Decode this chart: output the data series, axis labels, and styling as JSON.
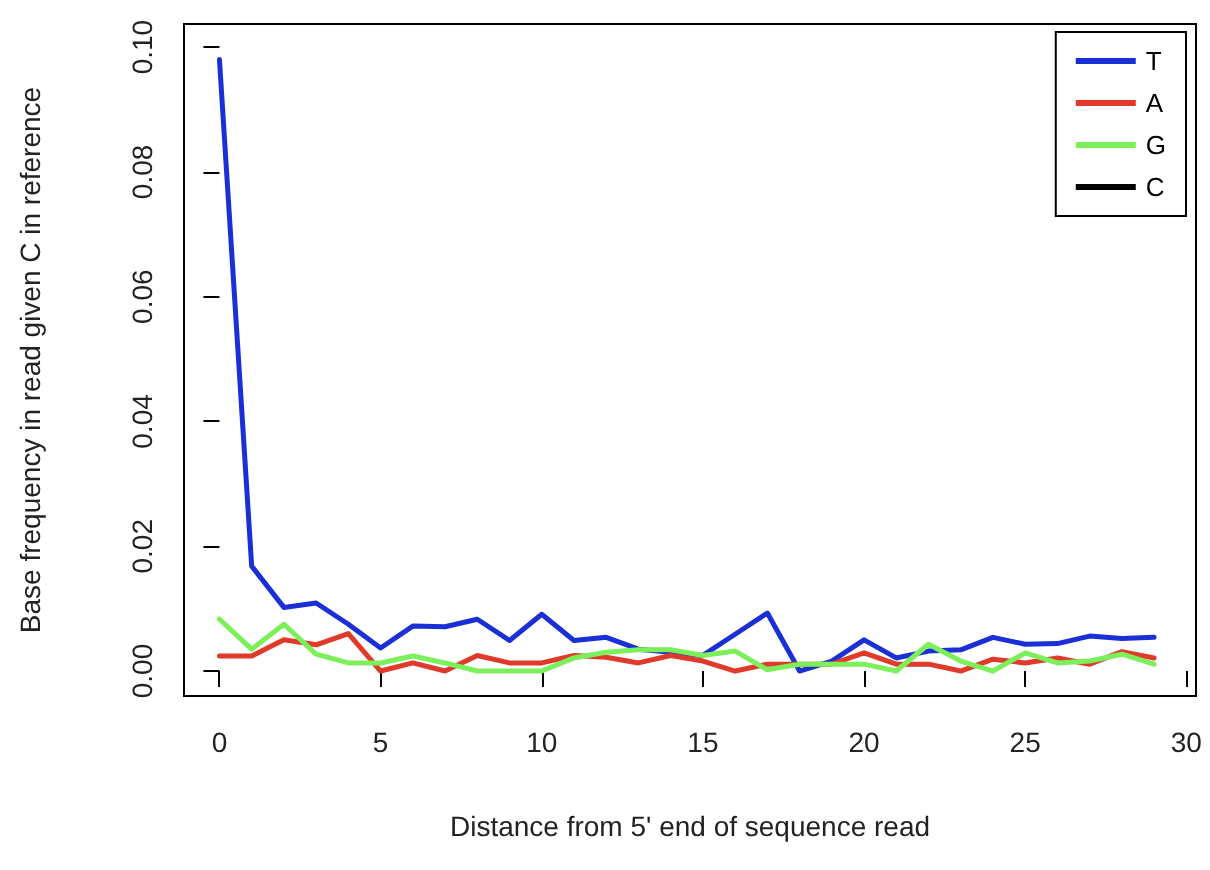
{
  "chart_data": {
    "type": "line",
    "xlabel": "Distance from 5' end of sequence read",
    "ylabel": "Base frequency in read given C in reference",
    "x": [
      0,
      1,
      2,
      3,
      4,
      5,
      6,
      7,
      8,
      9,
      10,
      11,
      12,
      13,
      14,
      15,
      16,
      17,
      18,
      19,
      20,
      21,
      22,
      23,
      24,
      25,
      26,
      27,
      28,
      29
    ],
    "series": [
      {
        "name": "T",
        "color": "#1a2fd6",
        "values": [
          0.098,
          0.0168,
          0.0102,
          0.0109,
          0.0075,
          0.0037,
          0.0072,
          0.0071,
          0.0083,
          0.0049,
          0.0091,
          0.0049,
          0.0054,
          0.0035,
          0.003,
          0.0025,
          0.0059,
          0.0093,
          0.0,
          0.0016,
          0.005,
          0.0021,
          0.0032,
          0.0034,
          0.0054,
          0.0043,
          0.0044,
          0.0056,
          0.0052,
          0.0054
        ]
      },
      {
        "name": "A",
        "color": "#e03a2a",
        "values": [
          0.0024,
          0.0024,
          0.005,
          0.0042,
          0.006,
          0.0,
          0.0013,
          0.0,
          0.0025,
          0.0013,
          0.0013,
          0.0025,
          0.0022,
          0.0013,
          0.0025,
          0.0016,
          0.0,
          0.0011,
          0.0011,
          0.0011,
          0.0029,
          0.0011,
          0.0011,
          0.0,
          0.0019,
          0.0013,
          0.0021,
          0.0011,
          0.0031,
          0.0021
        ]
      },
      {
        "name": "G",
        "color": "#7cf05a",
        "values": [
          0.0083,
          0.0035,
          0.0075,
          0.0027,
          0.0013,
          0.0013,
          0.0024,
          0.0013,
          0.0,
          0.0,
          0.0,
          0.0021,
          0.003,
          0.0034,
          0.0034,
          0.0025,
          0.0032,
          0.0002,
          0.0011,
          0.0011,
          0.0011,
          0.0,
          0.0043,
          0.0016,
          0.0,
          0.0029,
          0.0013,
          0.0016,
          0.0027,
          0.0011
        ]
      },
      {
        "name": "C",
        "color": "#000000",
        "values": [
          null,
          null,
          null,
          null,
          null,
          null,
          null,
          null,
          null,
          null,
          null,
          null,
          null,
          null,
          null,
          null,
          null,
          null,
          null,
          null,
          null,
          null,
          null,
          null,
          null,
          null,
          null,
          null,
          null,
          null
        ]
      }
    ],
    "xlim": [
      -1.1,
      30.3
    ],
    "xticks": [
      0,
      5,
      10,
      15,
      20,
      25,
      30
    ],
    "ylim": [
      -0.004,
      0.1037
    ],
    "yticks": [
      {
        "value": 0,
        "label": "0.00"
      },
      0.02,
      0.04,
      0.06,
      0.08,
      {
        "value": 0.1,
        "label": "0.10"
      }
    ],
    "grid": false,
    "legend": "top right",
    "marker": "none",
    "line_style": "solid"
  }
}
